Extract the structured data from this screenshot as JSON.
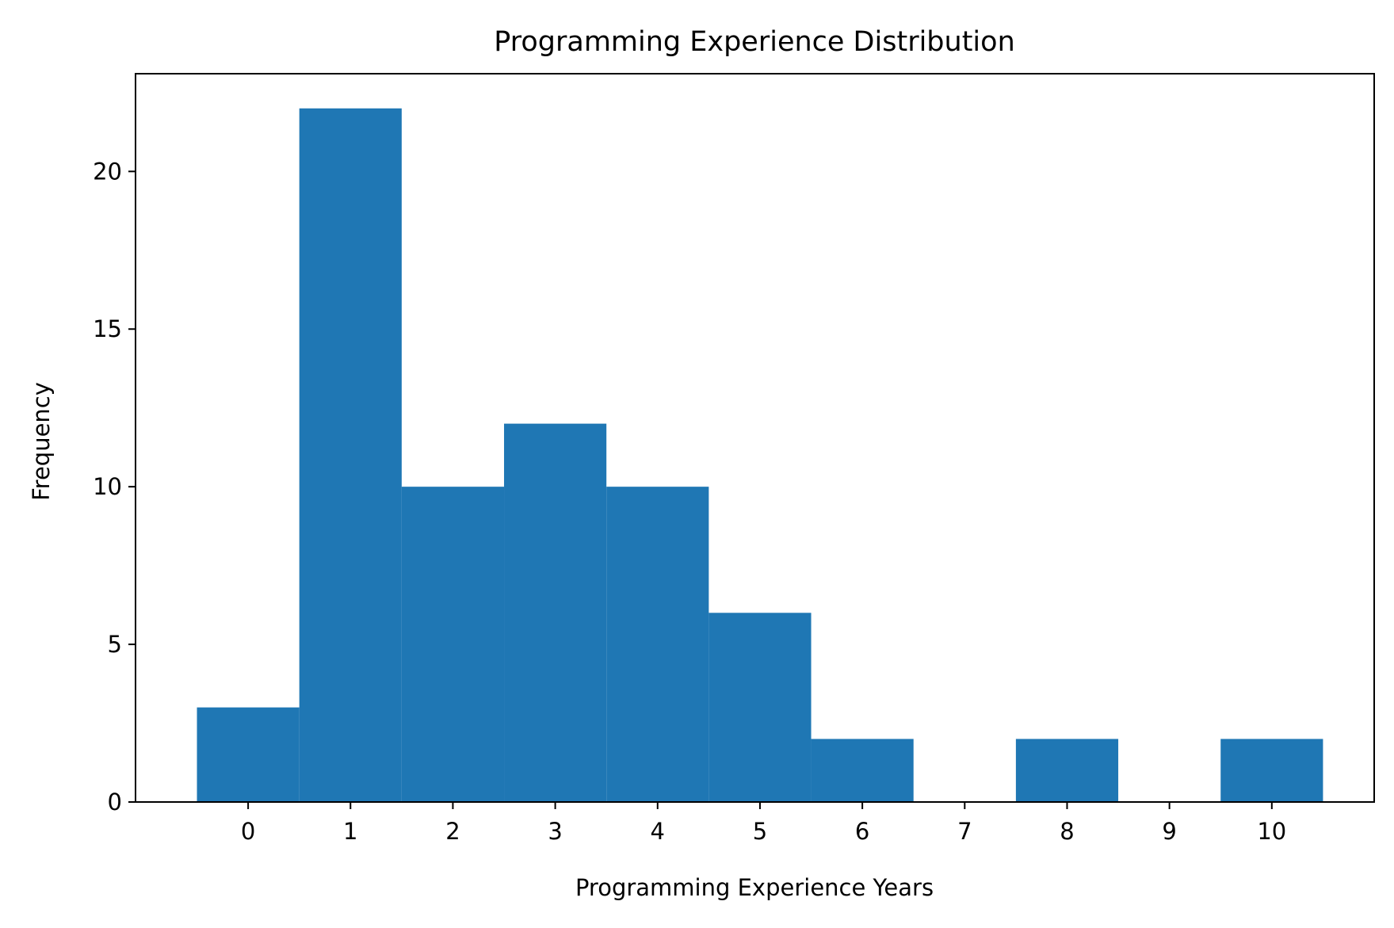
{
  "chart_data": {
    "type": "bar",
    "title": "Programming Experience Distribution",
    "xlabel": "Programming Experience Years",
    "ylabel": "Frequency",
    "categories": [
      "0",
      "1",
      "2",
      "3",
      "4",
      "5",
      "6",
      "7",
      "8",
      "9",
      "10"
    ],
    "values": [
      3,
      22,
      10,
      12,
      10,
      6,
      2,
      0,
      2,
      0,
      2
    ],
    "xlim": [
      -1.1,
      11.0
    ],
    "ylim": [
      0,
      23.1
    ],
    "yticks": [
      0,
      5,
      10,
      15,
      20
    ],
    "xticks": [
      0,
      1,
      2,
      3,
      4,
      5,
      6,
      7,
      8,
      9,
      10
    ],
    "bar_color": "#1f77b4",
    "grid": false,
    "legend": "none"
  }
}
